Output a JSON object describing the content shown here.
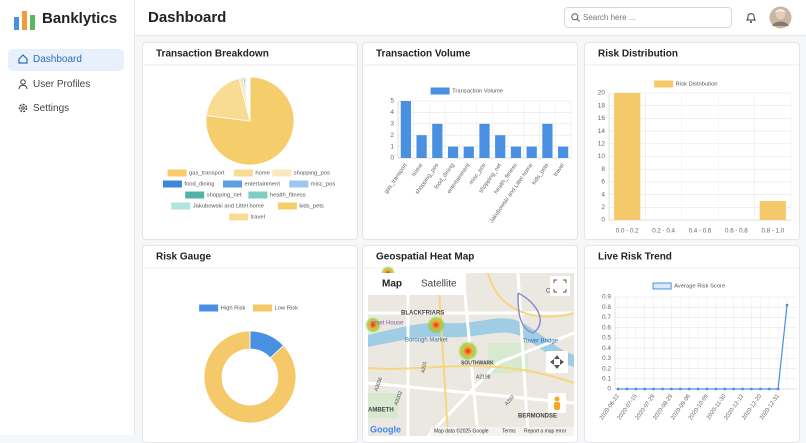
{
  "sidebar": {
    "brand": "Banklytics",
    "nav": [
      "Dashboard",
      "User Profiles",
      "Settings"
    ],
    "active": 0
  },
  "header": {
    "title": "Dashboard",
    "search_placeholder": "Search here ..."
  },
  "chart_data": [
    {
      "type": "pie",
      "title": "Transaction Breakdown",
      "categories": [
        "gas_transport",
        "home",
        "shopping_pos",
        "food_dining",
        "entertainment",
        "misc_pos",
        "shopping_net",
        "health_fitness",
        "Jakubowski and Littel home",
        "kids_pets",
        "travel"
      ],
      "values": [
        77,
        19,
        1.5,
        0.5,
        0.4,
        0.4,
        0.3,
        0.3,
        0.3,
        0.2,
        0.1
      ],
      "colors": [
        "#f5cd6b",
        "#f8dc94",
        "#fae8bd",
        "#3d86d8",
        "#5e9fe3",
        "#9ac6f0",
        "#4fb3a9",
        "#7fcdc3",
        "#b4e2dd",
        "#f5cd6b",
        "#f8dc94"
      ]
    },
    {
      "type": "bar",
      "title": "Transaction Volume",
      "categories": [
        "gas_transport",
        "home",
        "shopping_pos",
        "food_dining",
        "entertainment",
        "misc_pos",
        "shopping_net",
        "health_fitness",
        "Jakubowski and Littel home",
        "kids_pets",
        "travel"
      ],
      "series": [
        {
          "name": "Transaction Volume",
          "color": "#4a90e2",
          "values": [
            5,
            2,
            3,
            1,
            1,
            3,
            2,
            1,
            1,
            3,
            1
          ]
        }
      ],
      "ylim": [
        0,
        5
      ],
      "yticks": [
        0,
        1,
        2,
        3,
        4,
        5
      ],
      "grid": true
    },
    {
      "type": "bar",
      "title": "Risk Distribution",
      "categories": [
        "0.0 - 0.2",
        "0.2 - 0.4",
        "0.4 - 0.6",
        "0.6 - 0.8",
        "0.8 - 1.0"
      ],
      "series": [
        {
          "name": "Risk Distribution",
          "color": "#f5c96a",
          "values": [
            20,
            0,
            0,
            0,
            3
          ]
        }
      ],
      "ylim": [
        0,
        20
      ],
      "yticks": [
        0,
        2,
        4,
        6,
        8,
        10,
        12,
        14,
        16,
        18,
        20
      ],
      "grid": true
    },
    {
      "type": "doughnut",
      "title": "Risk Gauge",
      "categories": [
        "High Risk",
        "Low Risk"
      ],
      "values": [
        13,
        87
      ],
      "colors": [
        "#4a90e2",
        "#f5c96a"
      ]
    },
    {
      "type": "line",
      "title": "Live Risk Trend",
      "categories": [
        "2020-06-22",
        null,
        "2020-07-15",
        null,
        "2020-07-29",
        null,
        "2020-08-29",
        null,
        "2020-09-06",
        null,
        "2020-10-09",
        null,
        "2020-11-30",
        null,
        "2020-12-12",
        null,
        "2020-12-20",
        null,
        "2020-12-31",
        null
      ],
      "series": [
        {
          "name": "Average Risk Score",
          "color": "#4a90e2",
          "values": [
            0,
            0,
            0,
            0,
            0,
            0,
            0,
            0,
            0,
            0,
            0,
            0,
            0,
            0,
            0,
            0,
            0,
            0,
            0,
            0.82
          ]
        }
      ],
      "ylim": [
        0,
        0.9
      ],
      "yticks": [
        0,
        0.1,
        0.2,
        0.3,
        0.4,
        0.5,
        0.6,
        0.7,
        0.8,
        0.9
      ],
      "grid": true
    }
  ],
  "map": {
    "title": "Geospatial Heat Map",
    "buttons": [
      "Map",
      "Satellite"
    ],
    "places": [
      "BLACKFRIARS",
      "erset House",
      "Borough Market",
      "Tower Bridge",
      "SOUTHWARK",
      "Cable St",
      "AMBETH",
      "BERMONDSE",
      "A3036",
      "A201",
      "A2198",
      "A3202",
      "A202"
    ],
    "attribution": "Map data ©2025 Google",
    "terms": "Terms",
    "report": "Report a map error",
    "logo": "Google"
  }
}
